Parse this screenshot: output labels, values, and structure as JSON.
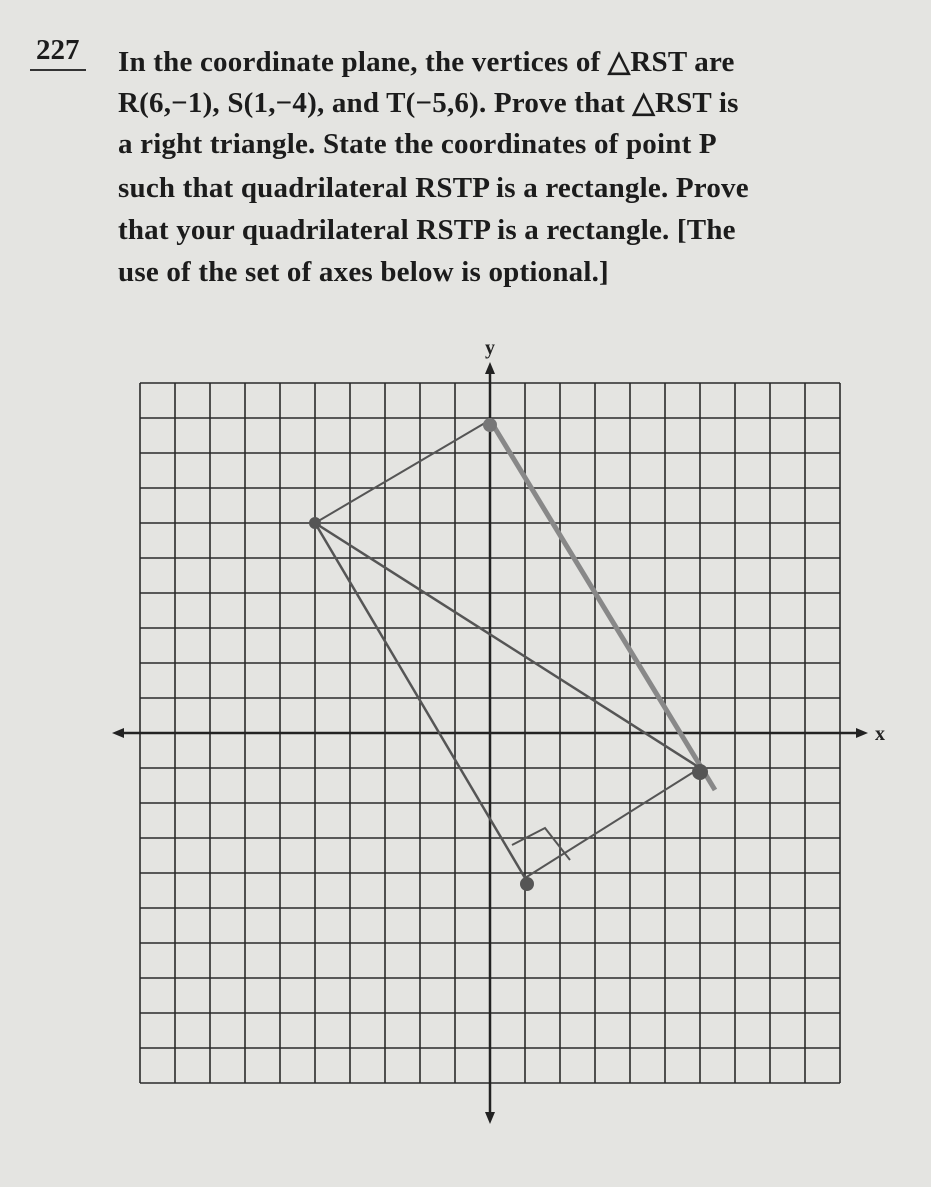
{
  "problem": {
    "number": "227",
    "lines": [
      "In the coordinate plane, the vertices of △RST are",
      "R(6,−1), S(1,−4), and T(−5,6).  Prove that △RST is",
      "a right triangle.  State the coordinates of point P",
      "such that quadrilateral RSTP is a rectangle.  Prove",
      "that your quadrilateral RSTP is a rectangle.  [The",
      "use of the set of axes below is optional.]"
    ]
  },
  "axes": {
    "x_label": "x",
    "y_label": "y"
  }
}
